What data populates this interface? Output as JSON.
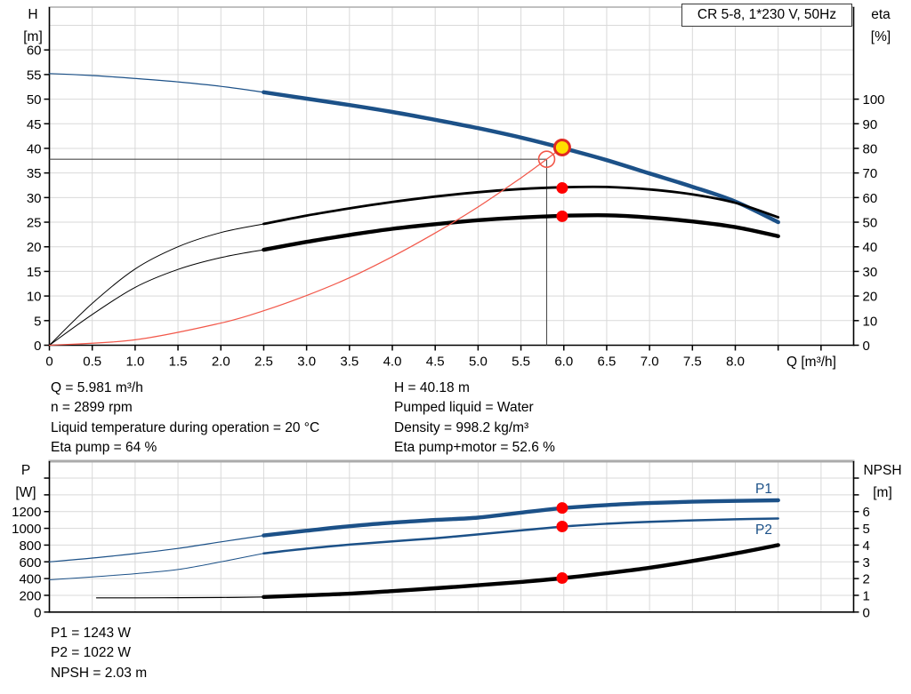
{
  "title_box": "CR 5-8, 1*230 V, 50Hz",
  "labels": {
    "h_axis": "H",
    "h_unit": "[m]",
    "eta_axis": "eta",
    "eta_unit": "[%]",
    "q_axis": "Q [m³/h]",
    "p_axis": "P",
    "p_unit": "[W]",
    "npsh_axis": "NPSH",
    "npsh_unit": "[m]",
    "p1": "P1",
    "p2": "P2"
  },
  "info_top_left": [
    "Q = 5.981 m³/h",
    "n = 2899 rpm",
    "Liquid temperature during operation = 20 °C",
    "Eta pump = 64 %"
  ],
  "info_top_right": [
    "H = 40.18 m",
    "Pumped liquid = Water",
    "Density = 998.2 kg/m³",
    "Eta pump+motor = 52.6 %"
  ],
  "info_bottom": [
    "P1 = 1243 W",
    "P2 = 1022 W",
    "NPSH = 2.03 m"
  ],
  "colors": {
    "curve_blue": "#1c5188",
    "curve_black": "#000000",
    "system_red": "#f25749",
    "dot_red": "#ff0000",
    "duty_yellow": "#ffdf00",
    "duty_ring": "#e02a22",
    "grid": "#d9d9d9",
    "crosshair": "#4d4d4d",
    "axis": "#000000",
    "top_border": "#ababab"
  },
  "chart_data": [
    {
      "type": "line",
      "name": "pump-performance",
      "x": {
        "label": "Q [m³/h]",
        "min": 0,
        "max": 9.38,
        "grid_step": 0.5,
        "ticks": [
          [
            0,
            "0"
          ],
          [
            0.5,
            "0.5"
          ],
          [
            1,
            "1.0"
          ],
          [
            1.5,
            "1.5"
          ],
          [
            2,
            "2.0"
          ],
          [
            2.5,
            "2.5"
          ],
          [
            3,
            "3.0"
          ],
          [
            3.5,
            "3.5"
          ],
          [
            4,
            "4.0"
          ],
          [
            4.5,
            "4.5"
          ],
          [
            5,
            "5.0"
          ],
          [
            5.5,
            "5.5"
          ],
          [
            6,
            "6.0"
          ],
          [
            6.5,
            "6.5"
          ],
          [
            7,
            "7.0"
          ],
          [
            7.5,
            "7.5"
          ],
          [
            8,
            "8.0"
          ]
        ],
        "extra_ticks": [
          8.5,
          9.0
        ]
      },
      "y_left": {
        "label": "H [m]",
        "min": 0,
        "max": 68.7,
        "grid_step": 5,
        "ticks": [
          [
            0,
            "0"
          ],
          [
            5,
            "5"
          ],
          [
            10,
            "10"
          ],
          [
            15,
            "15"
          ],
          [
            20,
            "20"
          ],
          [
            25,
            "25"
          ],
          [
            30,
            "30"
          ],
          [
            35,
            "35"
          ],
          [
            40,
            "40"
          ],
          [
            45,
            "45"
          ],
          [
            50,
            "50"
          ],
          [
            55,
            "55"
          ],
          [
            60,
            "60"
          ]
        ],
        "extra_ticks": []
      },
      "y_right": {
        "label": "eta [%]",
        "min": 0,
        "max": 137.4,
        "ticks": [
          [
            0,
            "0"
          ],
          [
            10,
            "10"
          ],
          [
            20,
            "20"
          ],
          [
            30,
            "30"
          ],
          [
            40,
            "40"
          ],
          [
            50,
            "50"
          ],
          [
            60,
            "60"
          ],
          [
            70,
            "70"
          ],
          [
            80,
            "80"
          ],
          [
            90,
            "90"
          ],
          [
            100,
            "100"
          ]
        ],
        "extra_ticks": []
      },
      "series": [
        {
          "name": "qh-curve",
          "axis": "left",
          "color": "#1c5188",
          "split": 2.5,
          "thin": 1.2,
          "thick": 4.5,
          "points": [
            [
              0,
              55.2
            ],
            [
              0.5,
              54.8
            ],
            [
              1,
              54.2
            ],
            [
              1.5,
              53.5
            ],
            [
              2,
              52.6
            ],
            [
              2.5,
              51.4
            ],
            [
              3,
              50.1
            ],
            [
              3.5,
              48.8
            ],
            [
              4,
              47.4
            ],
            [
              4.5,
              45.8
            ],
            [
              5,
              44.1
            ],
            [
              5.5,
              42.2
            ],
            [
              6,
              40.0
            ],
            [
              6.5,
              37.6
            ],
            [
              7,
              34.9
            ],
            [
              7.5,
              32.2
            ],
            [
              8,
              29.2
            ],
            [
              8.5,
              25.0
            ]
          ]
        },
        {
          "name": "eta-pump-curve",
          "axis": "right",
          "color": "#000000",
          "split": 2.5,
          "thin": 1,
          "thick": 2.8,
          "points": [
            [
              0,
              0
            ],
            [
              0.5,
              17
            ],
            [
              1,
              31
            ],
            [
              1.5,
              40
            ],
            [
              2,
              45.8
            ],
            [
              2.5,
              49.3
            ],
            [
              3,
              52.7
            ],
            [
              3.5,
              55.6
            ],
            [
              4,
              58.2
            ],
            [
              4.5,
              60.4
            ],
            [
              5,
              62.2
            ],
            [
              5.5,
              63.5
            ],
            [
              6,
              64.2
            ],
            [
              6.5,
              64.3
            ],
            [
              7,
              63.3
            ],
            [
              7.5,
              61.3
            ],
            [
              8,
              57.9
            ],
            [
              8.5,
              52.0
            ]
          ]
        },
        {
          "name": "eta-pump-motor-curve",
          "axis": "right",
          "color": "#000000",
          "split": 2.5,
          "thin": 1,
          "thick": 4.4,
          "points": [
            [
              0,
              0
            ],
            [
              0.5,
              12.5
            ],
            [
              1,
              23.5
            ],
            [
              1.5,
              30.8
            ],
            [
              2,
              35.6
            ],
            [
              2.5,
              38.8
            ],
            [
              3,
              42.0
            ],
            [
              3.5,
              44.8
            ],
            [
              4,
              47.3
            ],
            [
              4.5,
              49.2
            ],
            [
              5,
              50.8
            ],
            [
              5.5,
              51.9
            ],
            [
              6,
              52.6
            ],
            [
              6.5,
              52.8
            ],
            [
              7,
              51.9
            ],
            [
              7.5,
              50.3
            ],
            [
              8,
              48.0
            ],
            [
              8.5,
              44.3
            ]
          ]
        },
        {
          "name": "system-curve",
          "axis": "left",
          "color": "#f25749",
          "width": 1.2,
          "points": [
            [
              0,
              0
            ],
            [
              1,
              1.1
            ],
            [
              2,
              4.5
            ],
            [
              2.5,
              7.0
            ],
            [
              3,
              10.1
            ],
            [
              3.5,
              13.7
            ],
            [
              4,
              18.0
            ],
            [
              4.5,
              22.8
            ],
            [
              5,
              28.1
            ],
            [
              5.5,
              34.0
            ],
            [
              5.8,
              37.8
            ],
            [
              5.981,
              40.18
            ]
          ]
        }
      ],
      "crosshair": {
        "q": 5.8,
        "value": 37.8,
        "axis": "left"
      },
      "markers": [
        {
          "kind": "requested-duty-point",
          "shape": "circle-open",
          "q": 5.8,
          "axis": "left",
          "value": 37.8
        },
        {
          "kind": "actual-duty-point",
          "shape": "circle-yellow",
          "q": 5.981,
          "axis": "left",
          "value": 40.18
        },
        {
          "kind": "eta-pump-point",
          "shape": "dot-red",
          "q": 5.981,
          "axis": "right",
          "value": 63.9
        },
        {
          "kind": "eta-pump-motor-point",
          "shape": "dot-red",
          "q": 5.981,
          "axis": "right",
          "value": 52.4
        }
      ]
    },
    {
      "type": "line",
      "name": "power-npsh",
      "x": {
        "label": "",
        "min": 0,
        "max": 9.38,
        "grid_step": 0.5,
        "ticks": [],
        "extra_ticks": []
      },
      "y_left": {
        "label": "P [W]",
        "min": 0,
        "max": 1802,
        "grid_step": 200,
        "ticks": [
          [
            0,
            "0"
          ],
          [
            200,
            "200"
          ],
          [
            400,
            "400"
          ],
          [
            600,
            "600"
          ],
          [
            800,
            "800"
          ],
          [
            1000,
            "1000"
          ],
          [
            1200,
            "1200"
          ]
        ],
        "extra_ticks": [
          1400,
          1600
        ]
      },
      "y_right": {
        "label": "NPSH [m]",
        "min": 0,
        "max": 9.01,
        "ticks": [
          [
            0,
            "0"
          ],
          [
            1,
            "1"
          ],
          [
            2,
            "2"
          ],
          [
            3,
            "3"
          ],
          [
            4,
            "4"
          ],
          [
            5,
            "5"
          ],
          [
            6,
            "6"
          ]
        ],
        "extra_ticks": [
          7,
          8
        ]
      },
      "series": [
        {
          "name": "p1-curve",
          "axis": "left",
          "color": "#1c5188",
          "split": 2.5,
          "thin": 1.2,
          "thick": 4.4,
          "points": [
            [
              0,
              600
            ],
            [
              0.5,
              645
            ],
            [
              1,
              698
            ],
            [
              1.5,
              760
            ],
            [
              2,
              838
            ],
            [
              2.5,
              915
            ],
            [
              3,
              972
            ],
            [
              3.5,
              1025
            ],
            [
              4,
              1068
            ],
            [
              4.5,
              1100
            ],
            [
              5,
              1128
            ],
            [
              5.5,
              1188
            ],
            [
              6,
              1243
            ],
            [
              6.5,
              1278
            ],
            [
              7,
              1302
            ],
            [
              7.5,
              1318
            ],
            [
              8,
              1328
            ],
            [
              8.5,
              1335
            ]
          ]
        },
        {
          "name": "p2-curve",
          "axis": "left",
          "color": "#1c5188",
          "split": 2.5,
          "thin": 1,
          "thick": 2.5,
          "points": [
            [
              0,
              385
            ],
            [
              0.5,
              420
            ],
            [
              1,
              458
            ],
            [
              1.5,
              508
            ],
            [
              2,
              600
            ],
            [
              2.5,
              700
            ],
            [
              3,
              758
            ],
            [
              3.5,
              805
            ],
            [
              4,
              845
            ],
            [
              4.5,
              882
            ],
            [
              5,
              928
            ],
            [
              5.5,
              975
            ],
            [
              6,
              1022
            ],
            [
              6.5,
              1055
            ],
            [
              7,
              1078
            ],
            [
              7.5,
              1095
            ],
            [
              8,
              1108
            ],
            [
              8.5,
              1118
            ]
          ]
        },
        {
          "name": "npsh-curve",
          "axis": "right",
          "color": "#000000",
          "split": 2.5,
          "thin": 1.2,
          "thick": 4.4,
          "points": [
            [
              0.55,
              0.85
            ],
            [
              1,
              0.85
            ],
            [
              1.5,
              0.86
            ],
            [
              2,
              0.87
            ],
            [
              2.5,
              0.9
            ],
            [
              3,
              1.0
            ],
            [
              3.5,
              1.1
            ],
            [
              4,
              1.25
            ],
            [
              4.5,
              1.42
            ],
            [
              5,
              1.6
            ],
            [
              5.5,
              1.8
            ],
            [
              6,
              2.03
            ],
            [
              6.5,
              2.32
            ],
            [
              7,
              2.65
            ],
            [
              7.5,
              3.05
            ],
            [
              8,
              3.5
            ],
            [
              8.5,
              4.0
            ]
          ]
        }
      ],
      "crosshair": null,
      "markers": [
        {
          "kind": "p1-point",
          "shape": "dot-red",
          "q": 5.981,
          "axis": "left",
          "value": 1243
        },
        {
          "kind": "p2-point",
          "shape": "dot-red",
          "q": 5.981,
          "axis": "left",
          "value": 1022
        },
        {
          "kind": "npsh-point",
          "shape": "dot-red",
          "q": 5.981,
          "axis": "right",
          "value": 2.03
        }
      ]
    }
  ]
}
